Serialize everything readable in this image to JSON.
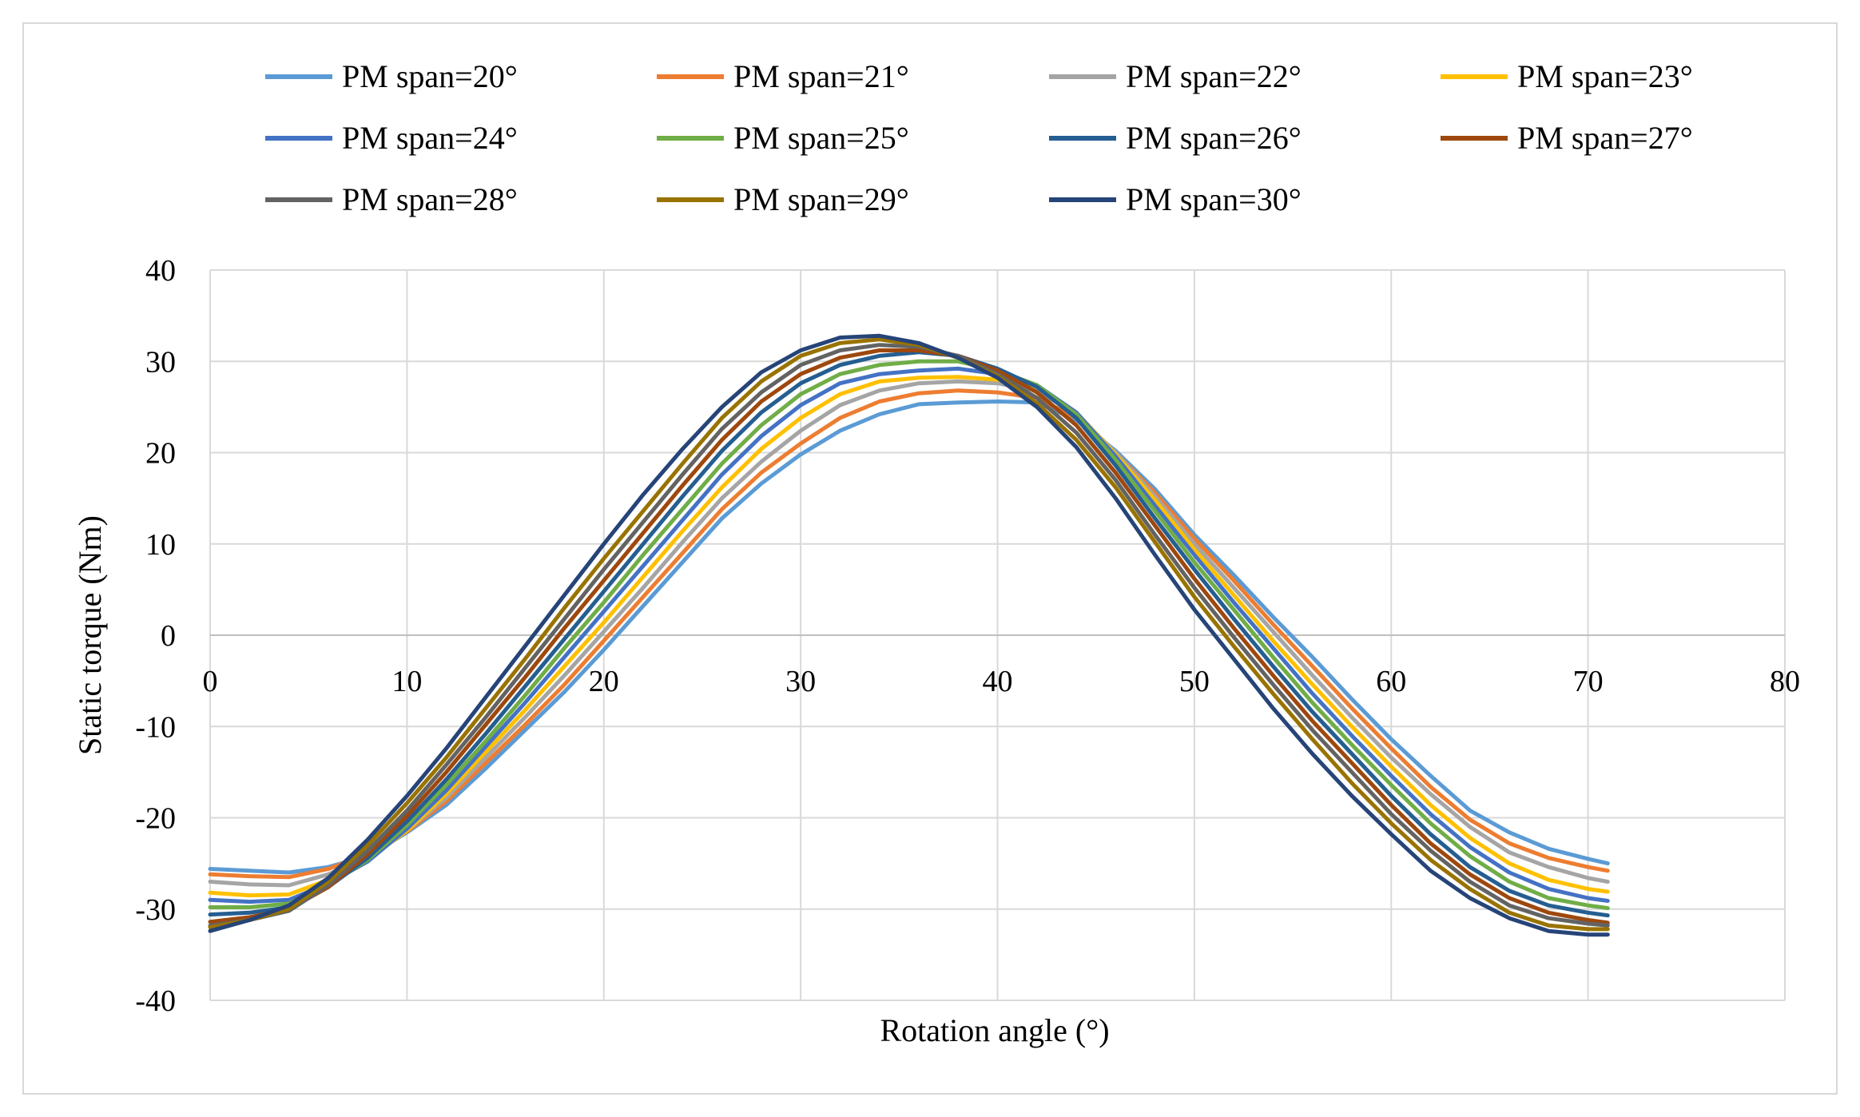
{
  "chart_data": {
    "type": "line",
    "title": "",
    "xlabel": "Rotation angle (°)",
    "ylabel": "Static torque (Nm)",
    "xlim": [
      0,
      80
    ],
    "ylim": [
      -40,
      40
    ],
    "xticks": [
      "0",
      "10",
      "20",
      "30",
      "40",
      "50",
      "60",
      "70",
      "80"
    ],
    "yticks": [
      "40",
      "30",
      "20",
      "10",
      "0",
      "-10",
      "-20",
      "-30",
      "-40"
    ],
    "grid": true,
    "legend_position": "top",
    "x": [
      0,
      2,
      4,
      6,
      8,
      10,
      12,
      14,
      16,
      18,
      20,
      22,
      24,
      26,
      28,
      30,
      32,
      34,
      36,
      38,
      40,
      42,
      44,
      46,
      48,
      50,
      52,
      54,
      56,
      58,
      60,
      62,
      64,
      66,
      68,
      70,
      71
    ],
    "series": [
      {
        "name": "PM span=20°",
        "color": "#5B9BD5",
        "values": [
          -25.6,
          -25.8,
          -26.0,
          -25.4,
          -24.2,
          -21.6,
          -18.6,
          -14.6,
          -10.4,
          -6.2,
          -1.6,
          3.2,
          8.0,
          12.8,
          16.6,
          19.8,
          22.4,
          24.2,
          25.3,
          25.5,
          25.6,
          25.5,
          23.6,
          20.2,
          16.0,
          11.0,
          6.6,
          2.0,
          -2.4,
          -7.0,
          -11.4,
          -15.4,
          -19.2,
          -21.6,
          -23.4,
          -24.5,
          -25.0
        ]
      },
      {
        "name": "PM span=21°",
        "color": "#ED7D31",
        "values": [
          -26.2,
          -26.4,
          -26.5,
          -25.6,
          -24.0,
          -21.5,
          -18.2,
          -14.0,
          -9.8,
          -5.4,
          -0.6,
          4.2,
          9.0,
          13.8,
          17.8,
          21.0,
          23.8,
          25.6,
          26.5,
          26.8,
          26.6,
          26.0,
          23.8,
          20.0,
          15.6,
          10.6,
          6.0,
          1.2,
          -3.4,
          -8.0,
          -12.4,
          -16.6,
          -20.2,
          -22.8,
          -24.4,
          -25.4,
          -25.8
        ]
      },
      {
        "name": "PM span=22°",
        "color": "#A5A5A5",
        "values": [
          -27.0,
          -27.3,
          -27.4,
          -26.2,
          -24.2,
          -21.4,
          -17.8,
          -13.4,
          -9.0,
          -4.4,
          0.4,
          5.2,
          10.2,
          15.0,
          19.0,
          22.4,
          25.2,
          26.8,
          27.6,
          27.8,
          27.6,
          26.8,
          24.2,
          20.0,
          15.2,
          10.0,
          5.2,
          0.4,
          -4.4,
          -9.0,
          -13.4,
          -17.4,
          -21.0,
          -23.8,
          -25.4,
          -26.6,
          -27.0
        ]
      },
      {
        "name": "PM span=23°",
        "color": "#FFC000",
        "values": [
          -28.2,
          -28.5,
          -28.4,
          -26.8,
          -24.6,
          -21.4,
          -17.4,
          -12.8,
          -8.2,
          -3.4,
          1.4,
          6.4,
          11.4,
          16.2,
          20.4,
          23.8,
          26.4,
          27.8,
          28.2,
          28.3,
          28.0,
          27.2,
          24.4,
          19.8,
          14.8,
          9.4,
          4.4,
          -0.6,
          -5.4,
          -10.0,
          -14.4,
          -18.6,
          -22.2,
          -25.0,
          -26.8,
          -27.8,
          -28.1
        ]
      },
      {
        "name": "PM span=24°",
        "color": "#4472C4",
        "values": [
          -29.0,
          -29.2,
          -29.0,
          -27.2,
          -24.8,
          -21.2,
          -17.0,
          -12.2,
          -7.4,
          -2.4,
          2.6,
          7.6,
          12.6,
          17.6,
          21.8,
          25.2,
          27.6,
          28.6,
          29.0,
          29.2,
          28.6,
          27.4,
          24.4,
          19.6,
          14.2,
          8.8,
          3.6,
          -1.4,
          -6.4,
          -11.0,
          -15.4,
          -19.6,
          -23.2,
          -26.0,
          -27.8,
          -28.8,
          -29.1
        ]
      },
      {
        "name": "PM span=25°",
        "color": "#70AD47",
        "values": [
          -29.8,
          -29.8,
          -29.4,
          -27.4,
          -24.6,
          -20.8,
          -16.4,
          -11.6,
          -6.6,
          -1.4,
          3.6,
          8.8,
          13.8,
          18.8,
          23.0,
          26.4,
          28.6,
          29.6,
          30.0,
          30.0,
          29.0,
          27.4,
          24.2,
          19.2,
          13.6,
          8.0,
          2.8,
          -2.4,
          -7.4,
          -12.0,
          -16.4,
          -20.6,
          -24.2,
          -27.0,
          -28.8,
          -29.6,
          -29.9
        ]
      },
      {
        "name": "PM span=26°",
        "color": "#255E91",
        "values": [
          -30.6,
          -30.4,
          -29.8,
          -27.6,
          -24.4,
          -20.4,
          -15.8,
          -10.8,
          -5.6,
          -0.4,
          4.8,
          10.0,
          15.2,
          20.2,
          24.4,
          27.6,
          29.6,
          30.6,
          31.0,
          30.6,
          29.2,
          27.2,
          23.8,
          18.6,
          12.8,
          7.2,
          1.8,
          -3.4,
          -8.4,
          -13.0,
          -17.6,
          -21.8,
          -25.4,
          -28.0,
          -29.6,
          -30.4,
          -30.7
        ]
      },
      {
        "name": "PM span=27°",
        "color": "#9E480E",
        "values": [
          -31.4,
          -30.9,
          -30.0,
          -27.6,
          -24.0,
          -19.8,
          -15.0,
          -9.8,
          -4.6,
          0.8,
          6.0,
          11.2,
          16.4,
          21.4,
          25.6,
          28.6,
          30.4,
          31.2,
          31.2,
          30.6,
          29.0,
          26.6,
          23.0,
          17.8,
          12.0,
          6.2,
          0.8,
          -4.4,
          -9.4,
          -14.0,
          -18.6,
          -22.8,
          -26.2,
          -28.8,
          -30.4,
          -31.2,
          -31.5
        ]
      },
      {
        "name": "PM span=28°",
        "color": "#636363",
        "values": [
          -31.8,
          -31.2,
          -30.2,
          -27.4,
          -23.6,
          -19.2,
          -14.2,
          -9.0,
          -3.6,
          1.8,
          7.2,
          12.4,
          17.6,
          22.6,
          26.6,
          29.6,
          31.2,
          31.8,
          31.6,
          30.6,
          28.6,
          26.0,
          22.2,
          17.0,
          11.0,
          5.2,
          -0.2,
          -5.4,
          -10.4,
          -15.0,
          -19.6,
          -23.6,
          -27.0,
          -29.6,
          -31.0,
          -31.6,
          -31.8
        ]
      },
      {
        "name": "PM span=29°",
        "color": "#997300",
        "values": [
          -32.0,
          -31.2,
          -30.0,
          -27.0,
          -23.0,
          -18.4,
          -13.4,
          -8.0,
          -2.6,
          3.0,
          8.4,
          13.6,
          18.8,
          23.8,
          27.8,
          30.6,
          32.0,
          32.4,
          31.8,
          30.4,
          28.4,
          25.4,
          21.4,
          16.2,
          10.2,
          4.2,
          -1.2,
          -6.4,
          -11.4,
          -16.2,
          -20.6,
          -24.6,
          -27.8,
          -30.4,
          -31.8,
          -32.2,
          -32.2
        ]
      },
      {
        "name": "PM span=30°",
        "color": "#264478",
        "values": [
          -32.4,
          -31.2,
          -29.6,
          -26.6,
          -22.4,
          -17.6,
          -12.4,
          -6.8,
          -1.2,
          4.4,
          10.0,
          15.4,
          20.4,
          25.0,
          28.8,
          31.2,
          32.6,
          32.8,
          32.0,
          30.4,
          28.2,
          25.0,
          20.6,
          15.0,
          8.8,
          2.8,
          -2.6,
          -8.0,
          -13.0,
          -17.6,
          -21.8,
          -25.8,
          -28.8,
          -31.0,
          -32.4,
          -32.8,
          -32.8
        ]
      }
    ]
  }
}
